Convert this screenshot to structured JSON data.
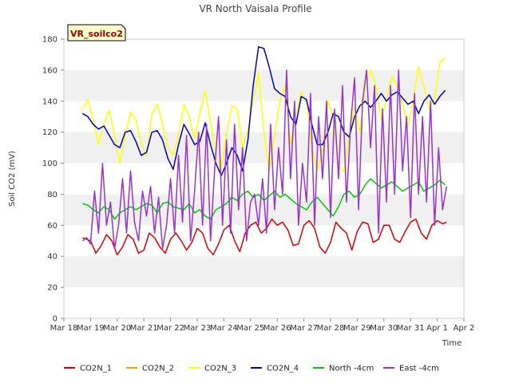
{
  "chart_data": {
    "type": "line",
    "title": "VR North Vaisala Profile",
    "tag": "VR_soilco2",
    "xlabel": "Time",
    "ylabel": "Soil CO2 (mV)",
    "ylim": [
      0,
      180
    ],
    "yticks": [
      0,
      20,
      40,
      60,
      80,
      100,
      120,
      140,
      160,
      180
    ],
    "xlim": [
      0,
      15
    ],
    "xticks": [
      {
        "v": 0,
        "label": "Mar 18"
      },
      {
        "v": 1,
        "label": "Mar 19"
      },
      {
        "v": 2,
        "label": "Mar 20"
      },
      {
        "v": 3,
        "label": "Mar 21"
      },
      {
        "v": 4,
        "label": "Mar 22"
      },
      {
        "v": 5,
        "label": "Mar 23"
      },
      {
        "v": 6,
        "label": "Mar 24"
      },
      {
        "v": 7,
        "label": "Mar 25"
      },
      {
        "v": 8,
        "label": "Mar 26"
      },
      {
        "v": 9,
        "label": "Mar 27"
      },
      {
        "v": 10,
        "label": "Mar 28"
      },
      {
        "v": 11,
        "label": "Mar 29"
      },
      {
        "v": 12,
        "label": "Mar 30"
      },
      {
        "v": 13,
        "label": "Mar 31"
      },
      {
        "v": 14,
        "label": "Apr 1"
      },
      {
        "v": 15,
        "label": "Apr 2"
      }
    ],
    "grid": "horizontal bands",
    "legend_position": "bottom",
    "series": [
      {
        "name": "CO2N_1",
        "color": "#dd0000",
        "x": [
          0.7,
          1.0,
          1.2,
          1.4,
          1.6,
          1.8,
          2.0,
          2.2,
          2.4,
          2.6,
          2.8,
          3.0,
          3.2,
          3.4,
          3.6,
          3.8,
          4.0,
          4.2,
          4.4,
          4.6,
          4.8,
          5.0,
          5.2,
          5.4,
          5.6,
          5.8,
          6.0,
          6.2,
          6.4,
          6.6,
          6.8,
          7.0,
          7.2,
          7.4,
          7.6,
          7.8,
          8.0,
          8.2,
          8.4,
          8.6,
          8.8,
          9.0,
          9.2,
          9.4,
          9.6,
          9.8,
          10.0,
          10.2,
          10.4,
          10.6,
          10.8,
          11.0,
          11.2,
          11.4,
          11.6,
          11.8,
          12.0,
          12.2,
          12.4,
          12.6,
          12.8,
          13.0,
          13.2,
          13.4,
          13.6,
          13.8,
          14.0,
          14.2,
          14.35
        ],
        "y": [
          52,
          50,
          42,
          47,
          54,
          50,
          41,
          46,
          54,
          51,
          42,
          44,
          55,
          52,
          46,
          42,
          51,
          55,
          50,
          44,
          49,
          58,
          55,
          45,
          41,
          48,
          57,
          60,
          50,
          43,
          55,
          60,
          62,
          55,
          58,
          64,
          60,
          62,
          57,
          47,
          48,
          60,
          63,
          58,
          46,
          42,
          49,
          62,
          58,
          55,
          44,
          56,
          62,
          61,
          49,
          51,
          60,
          60,
          51,
          49,
          56,
          62,
          64,
          55,
          51,
          60,
          63,
          61,
          62
        ]
      },
      {
        "name": "CO2N_2",
        "color": "#ff9900",
        "x": [],
        "y": []
      },
      {
        "name": "CO2N_3",
        "color": "#ffff00",
        "x": [
          0.7,
          0.9,
          1.1,
          1.3,
          1.5,
          1.7,
          1.9,
          2.1,
          2.3,
          2.5,
          2.7,
          2.9,
          3.1,
          3.3,
          3.5,
          3.7,
          3.9,
          4.1,
          4.3,
          4.5,
          4.7,
          4.9,
          5.1,
          5.3,
          5.5,
          5.7,
          5.9,
          6.1,
          6.3,
          6.5,
          6.7,
          6.9,
          7.1,
          7.3,
          7.5,
          7.7,
          7.9,
          8.1,
          8.3,
          8.5,
          8.7,
          8.9,
          9.1,
          9.3,
          9.5,
          9.7,
          9.9,
          10.1,
          10.3,
          10.5,
          10.7,
          10.9,
          11.1,
          11.3,
          11.5,
          11.7,
          11.9,
          12.1,
          12.3,
          12.5,
          12.7,
          12.9,
          13.1,
          13.3,
          13.5,
          13.7,
          13.9,
          14.1,
          14.3
        ],
        "y": [
          135,
          141,
          128,
          112,
          125,
          134,
          118,
          100,
          118,
          133,
          128,
          112,
          105,
          132,
          138,
          125,
          110,
          105,
          118,
          138,
          130,
          116,
          132,
          147,
          126,
          105,
          96,
          120,
          137,
          135,
          110,
          122,
          140,
          158,
          120,
          95,
          118,
          140,
          150,
          112,
          132,
          146,
          140,
          110,
          95,
          108,
          140,
          130,
          98,
          95,
          118,
          137,
          120,
          150,
          160,
          150,
          128,
          142,
          156,
          150,
          138,
          124,
          140,
          162,
          150,
          135,
          142,
          165,
          168
        ]
      },
      {
        "name": "CO2N_4",
        "color": "#0000cc",
        "x": [
          0.7,
          0.9,
          1.1,
          1.3,
          1.5,
          1.7,
          1.9,
          2.1,
          2.3,
          2.5,
          2.7,
          2.9,
          3.1,
          3.3,
          3.5,
          3.7,
          3.9,
          4.1,
          4.3,
          4.5,
          4.7,
          4.9,
          5.1,
          5.3,
          5.5,
          5.7,
          5.9,
          6.1,
          6.3,
          6.5,
          6.7,
          6.9,
          7.1,
          7.3,
          7.5,
          7.7,
          7.9,
          8.1,
          8.3,
          8.5,
          8.7,
          8.9,
          9.1,
          9.3,
          9.5,
          9.7,
          9.9,
          10.1,
          10.3,
          10.5,
          10.7,
          10.9,
          11.1,
          11.3,
          11.5,
          11.7,
          11.9,
          12.1,
          12.3,
          12.5,
          12.7,
          12.9,
          13.1,
          13.3,
          13.5,
          13.7,
          13.9,
          14.1,
          14.3
        ],
        "y": [
          132,
          130,
          125,
          122,
          124,
          118,
          112,
          110,
          120,
          121,
          114,
          105,
          107,
          120,
          121,
          115,
          103,
          96,
          112,
          125,
          119,
          112,
          114,
          126,
          112,
          100,
          92,
          100,
          110,
          105,
          95,
          115,
          150,
          175,
          174,
          162,
          148,
          145,
          143,
          130,
          125,
          143,
          141,
          125,
          112,
          112,
          120,
          132,
          130,
          120,
          117,
          130,
          137,
          140,
          136,
          140,
          145,
          140,
          144,
          146,
          142,
          138,
          140,
          132,
          140,
          144,
          138,
          143,
          147
        ]
      },
      {
        "name": "North -4cm",
        "color": "#00cc00",
        "x": [
          0.7,
          0.9,
          1.1,
          1.3,
          1.5,
          1.7,
          1.9,
          2.1,
          2.3,
          2.5,
          2.7,
          2.9,
          3.1,
          3.3,
          3.5,
          3.7,
          3.9,
          4.1,
          4.3,
          4.5,
          4.7,
          4.9,
          5.1,
          5.3,
          5.5,
          5.7,
          5.9,
          6.1,
          6.3,
          6.5,
          6.7,
          6.9,
          7.1,
          7.3,
          7.5,
          7.7,
          7.9,
          8.1,
          8.3,
          8.5,
          8.7,
          8.9,
          9.1,
          9.3,
          9.5,
          9.7,
          9.9,
          10.1,
          10.3,
          10.5,
          10.7,
          10.9,
          11.1,
          11.3,
          11.5,
          11.7,
          11.9,
          12.1,
          12.3,
          12.5,
          12.7,
          12.9,
          13.1,
          13.3,
          13.5,
          13.7,
          13.9,
          14.1,
          14.3
        ],
        "y": [
          74,
          73,
          70,
          68,
          72,
          70,
          64,
          68,
          70,
          72,
          70,
          72,
          74,
          73,
          68,
          74,
          75,
          72,
          71,
          70,
          74,
          68,
          70,
          66,
          64,
          70,
          72,
          74,
          78,
          76,
          80,
          82,
          78,
          80,
          76,
          79,
          82,
          78,
          80,
          77,
          74,
          72,
          70,
          75,
          78,
          74,
          70,
          66,
          72,
          80,
          82,
          78,
          80,
          86,
          90,
          87,
          84,
          86,
          88,
          85,
          82,
          84,
          86,
          88,
          82,
          84,
          86,
          89,
          86
        ]
      },
      {
        "name": "East -4cm",
        "color": "#9933cc",
        "x": [
          0.7,
          0.85,
          1.0,
          1.15,
          1.3,
          1.45,
          1.6,
          1.75,
          1.9,
          2.05,
          2.2,
          2.35,
          2.5,
          2.65,
          2.8,
          2.95,
          3.1,
          3.25,
          3.4,
          3.55,
          3.7,
          3.85,
          4.0,
          4.15,
          4.3,
          4.45,
          4.6,
          4.75,
          4.9,
          5.05,
          5.2,
          5.35,
          5.5,
          5.65,
          5.8,
          5.95,
          6.1,
          6.25,
          6.4,
          6.55,
          6.7,
          6.85,
          7.0,
          7.15,
          7.3,
          7.45,
          7.6,
          7.75,
          7.9,
          8.05,
          8.2,
          8.35,
          8.5,
          8.65,
          8.8,
          8.95,
          9.1,
          9.25,
          9.4,
          9.55,
          9.7,
          9.85,
          10.0,
          10.15,
          10.3,
          10.45,
          10.6,
          10.75,
          10.9,
          11.05,
          11.2,
          11.35,
          11.5,
          11.65,
          11.8,
          11.95,
          12.1,
          12.25,
          12.4,
          12.55,
          12.7,
          12.85,
          13.0,
          13.15,
          13.3,
          13.45,
          13.6,
          13.75,
          13.9,
          14.05,
          14.2,
          14.35
        ],
        "y": [
          50,
          52,
          48,
          82,
          55,
          100,
          60,
          75,
          45,
          60,
          90,
          55,
          95,
          62,
          50,
          82,
          66,
          85,
          55,
          78,
          45,
          60,
          90,
          55,
          105,
          62,
          118,
          50,
          82,
          120,
          60,
          125,
          50,
          95,
          130,
          60,
          115,
          55,
          125,
          70,
          110,
          50,
          75,
          80,
          60,
          90,
          55,
          125,
          70,
          110,
          80,
          160,
          90,
          140,
          60,
          100,
          75,
          145,
          60,
          130,
          90,
          140,
          65,
          135,
          90,
          150,
          75,
          125,
          155,
          70,
          140,
          160,
          110,
          150,
          55,
          135,
          75,
          150,
          80,
          160,
          95,
          130,
          65,
          145,
          80,
          130,
          75,
          140,
          60,
          110,
          70,
          85
        ]
      }
    ]
  }
}
